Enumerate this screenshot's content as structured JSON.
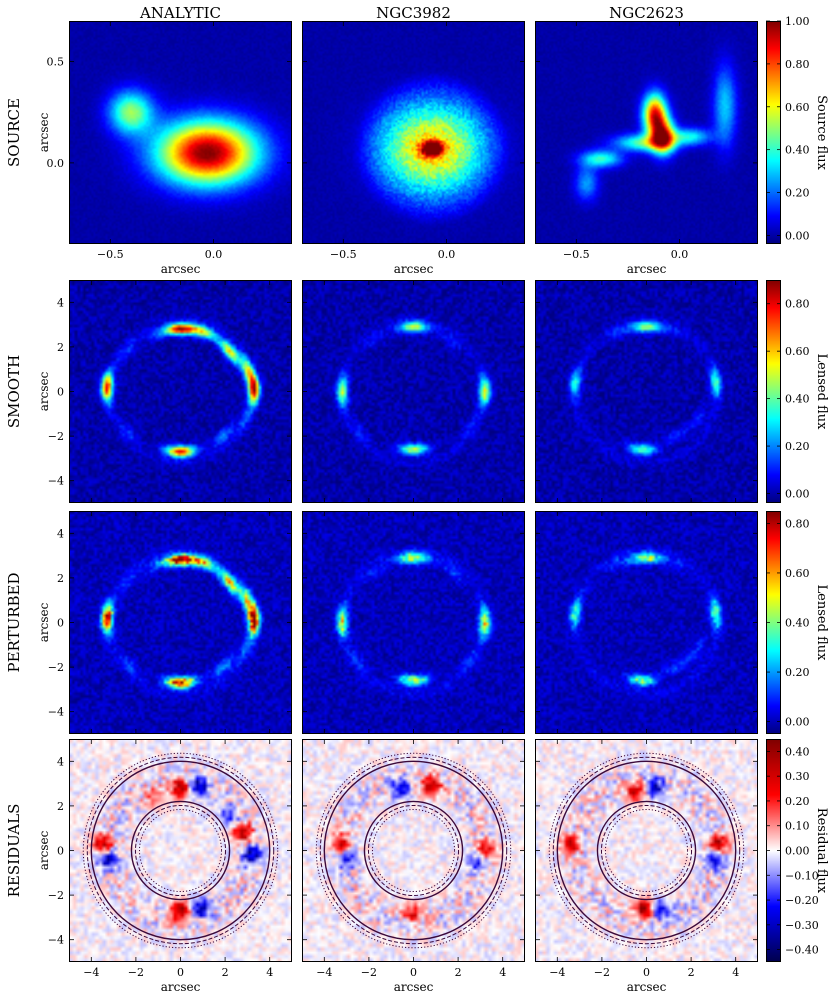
{
  "chart_data": {
    "type": "heatmap",
    "columns": [
      "ANALYTIC",
      "NGC3982",
      "NGC2623"
    ],
    "rows": [
      "SOURCE",
      "SMOOTH",
      "PERTURBED",
      "RESIDUALS"
    ],
    "panel_axis_label": "arcsec",
    "source_row": {
      "xlim": [
        -0.7,
        0.38
      ],
      "ylim": [
        -0.4,
        0.7
      ],
      "xticks": [
        -0.5,
        0.0
      ],
      "xtick_labels": [
        "−0.5",
        "0.0"
      ],
      "yticks": [
        0.0,
        0.5
      ],
      "ytick_labels": [
        "0.0",
        "0.5"
      ],
      "components": {
        "ANALYTIC": [
          {
            "kind": "blob",
            "x": -0.4,
            "y": 0.25,
            "sx": 0.075,
            "sy": 0.075,
            "amp": 0.5
          },
          {
            "kind": "blob",
            "x": -0.03,
            "y": 0.05,
            "sx": 0.17,
            "sy": 0.11,
            "amp": 1.0
          }
        ],
        "NGC3982": [
          {
            "kind": "disk",
            "x": -0.07,
            "y": 0.07,
            "r": 0.38,
            "amp": 0.22
          },
          {
            "kind": "blob",
            "x": -0.07,
            "y": 0.07,
            "sx": 0.17,
            "sy": 0.14,
            "amp": 0.45
          },
          {
            "kind": "blob",
            "x": -0.07,
            "y": 0.07,
            "sx": 0.035,
            "sy": 0.025,
            "amp": 0.75
          }
        ],
        "NGC2623": [
          {
            "kind": "blob",
            "x": -0.12,
            "y": 0.24,
            "sx": 0.04,
            "sy": 0.07,
            "amp": 0.85
          },
          {
            "kind": "blob",
            "x": -0.08,
            "y": 0.13,
            "sx": 0.04,
            "sy": 0.06,
            "amp": 0.8
          },
          {
            "kind": "blob",
            "x": -0.17,
            "y": 0.1,
            "sx": 0.1,
            "sy": 0.03,
            "amp": 0.45
          },
          {
            "kind": "blob",
            "x": -0.38,
            "y": 0.02,
            "sx": 0.07,
            "sy": 0.03,
            "amp": 0.4
          },
          {
            "kind": "blob",
            "x": -0.45,
            "y": -0.1,
            "sx": 0.04,
            "sy": 0.06,
            "amp": 0.25
          },
          {
            "kind": "blob",
            "x": 0.05,
            "y": 0.13,
            "sx": 0.07,
            "sy": 0.03,
            "amp": 0.35
          },
          {
            "kind": "blob",
            "x": 0.22,
            "y": 0.28,
            "sx": 0.04,
            "sy": 0.14,
            "amp": 0.3
          }
        ]
      }
    },
    "image_rows": {
      "xlim": [
        -5,
        5
      ],
      "ylim": [
        -5,
        5
      ],
      "ticks": [
        -4,
        -2,
        0,
        2,
        4
      ],
      "tick_labels": [
        "−4",
        "−2",
        "0",
        "2",
        "4"
      ],
      "einstein_radius": 3.2
    },
    "image_arcs": {
      "ANALYTIC": [
        {
          "x": 0.0,
          "y": 2.8,
          "amp": 0.85
        },
        {
          "x": 3.3,
          "y": 0.1,
          "amp": 0.85
        },
        {
          "x": -3.3,
          "y": 0.2,
          "amp": 0.75
        },
        {
          "x": 0.0,
          "y": -2.7,
          "amp": 0.8
        },
        {
          "x": 2.2,
          "y": 1.8,
          "amp": 0.55
        },
        {
          "x": 1.0,
          "y": 2.7,
          "amp": 0.5
        },
        {
          "x": 3.0,
          "y": 1.0,
          "amp": 0.45
        },
        {
          "x": -1.0,
          "y": 2.6,
          "amp": 0.12
        },
        {
          "x": -2.4,
          "y": 1.8,
          "amp": 0.1
        },
        {
          "x": -2.3,
          "y": -1.9,
          "amp": 0.1
        },
        {
          "x": 1.9,
          "y": -2.0,
          "amp": 0.2
        },
        {
          "x": 2.9,
          "y": -1.2,
          "amp": 0.12
        }
      ],
      "NGC3982": [
        {
          "x": 0.0,
          "y": 2.9,
          "amp": 0.5
        },
        {
          "x": 3.2,
          "y": 0.0,
          "amp": 0.5
        },
        {
          "x": -3.2,
          "y": 0.0,
          "amp": 0.45
        },
        {
          "x": 0.0,
          "y": -2.6,
          "amp": 0.5
        },
        {
          "x": 1.7,
          "y": 2.3,
          "amp": 0.1
        },
        {
          "x": -1.7,
          "y": 2.3,
          "amp": 0.08
        },
        {
          "x": 2.5,
          "y": -1.6,
          "amp": 0.08
        },
        {
          "x": -2.4,
          "y": -1.8,
          "amp": 0.08
        }
      ],
      "NGC2623": [
        {
          "x": 0.0,
          "y": 2.9,
          "amp": 0.45
        },
        {
          "x": 3.1,
          "y": 0.4,
          "amp": 0.35
        },
        {
          "x": -3.2,
          "y": 0.4,
          "amp": 0.3
        },
        {
          "x": -0.2,
          "y": -2.6,
          "amp": 0.4
        },
        {
          "x": 1.3,
          "y": -2.0,
          "amp": 0.12
        },
        {
          "x": 2.3,
          "y": -1.2,
          "amp": 0.1
        },
        {
          "x": -1.2,
          "y": 2.7,
          "amp": 0.1
        },
        {
          "x": 1.2,
          "y": 2.7,
          "amp": 0.08
        }
      ]
    },
    "residual_spots": {
      "ANALYTIC": [
        {
          "x": -3.5,
          "y": 0.3,
          "v": 0.35
        },
        {
          "x": -3.3,
          "y": -0.4,
          "v": -0.3
        },
        {
          "x": 0.0,
          "y": 2.8,
          "v": 0.35
        },
        {
          "x": 0.8,
          "y": 2.9,
          "v": -0.35
        },
        {
          "x": 2.8,
          "y": 0.8,
          "v": 0.35
        },
        {
          "x": 3.2,
          "y": -0.2,
          "v": -0.35
        },
        {
          "x": 0.0,
          "y": -2.7,
          "v": 0.4
        },
        {
          "x": 0.9,
          "y": -2.6,
          "v": -0.3
        },
        {
          "x": 2.2,
          "y": 1.6,
          "v": -0.2
        },
        {
          "x": -1.2,
          "y": 2.4,
          "v": 0.15
        }
      ],
      "NGC3982": [
        {
          "x": 0.8,
          "y": 2.9,
          "v": 0.35
        },
        {
          "x": -0.6,
          "y": 2.8,
          "v": -0.25
        },
        {
          "x": -3.3,
          "y": 0.3,
          "v": 0.3
        },
        {
          "x": -3.0,
          "y": -0.4,
          "v": -0.2
        },
        {
          "x": 3.3,
          "y": 0.0,
          "v": 0.3
        },
        {
          "x": 2.9,
          "y": -0.5,
          "v": -0.2
        },
        {
          "x": 0.0,
          "y": -2.8,
          "v": 0.25
        }
      ],
      "NGC2623": [
        {
          "x": -0.5,
          "y": 2.6,
          "v": 0.3
        },
        {
          "x": 0.4,
          "y": 2.8,
          "v": -0.3
        },
        {
          "x": -3.4,
          "y": 0.3,
          "v": 0.3
        },
        {
          "x": 3.2,
          "y": 0.3,
          "v": 0.35
        },
        {
          "x": 3.1,
          "y": -0.4,
          "v": -0.25
        },
        {
          "x": -0.1,
          "y": -2.6,
          "v": 0.4
        },
        {
          "x": 0.6,
          "y": -2.6,
          "v": -0.25
        }
      ]
    },
    "mask_contour": {
      "style": [
        "solid",
        "dashed",
        "dotted"
      ],
      "color": "#3b0a3b",
      "inner_radius": 2.2,
      "outer_radius": 4.0
    },
    "colorbars": [
      {
        "label": "Source flux",
        "colormap": "jet",
        "range": [
          -0.04,
          1.0
        ],
        "ticks": [
          0.0,
          0.2,
          0.4,
          0.6,
          0.8,
          1.0
        ],
        "tick_labels": [
          "0.00",
          "0.20",
          "0.40",
          "0.60",
          "0.80",
          "1.00"
        ]
      },
      {
        "label": "Lensed flux",
        "colormap": "jet",
        "range": [
          -0.04,
          0.9
        ],
        "ticks": [
          0.0,
          0.2,
          0.4,
          0.6,
          0.8
        ],
        "tick_labels": [
          "0.00",
          "0.20",
          "0.40",
          "0.60",
          "0.80"
        ]
      },
      {
        "label": "Lensed flux",
        "colormap": "jet",
        "range": [
          -0.05,
          0.85
        ],
        "ticks": [
          0.0,
          0.2,
          0.4,
          0.6,
          0.8
        ],
        "tick_labels": [
          "0.00",
          "0.20",
          "0.40",
          "0.60",
          "0.80"
        ]
      },
      {
        "label": "Residual flux",
        "colormap": "seismic",
        "range": [
          -0.45,
          0.45
        ],
        "ticks": [
          -0.4,
          -0.3,
          -0.2,
          -0.1,
          0.0,
          0.1,
          0.2,
          0.3,
          0.4
        ],
        "tick_labels": [
          "−0.40",
          "−0.30",
          "−0.20",
          "−0.10",
          "0.00",
          "0.10",
          "0.20",
          "0.30",
          "0.40"
        ]
      }
    ]
  }
}
